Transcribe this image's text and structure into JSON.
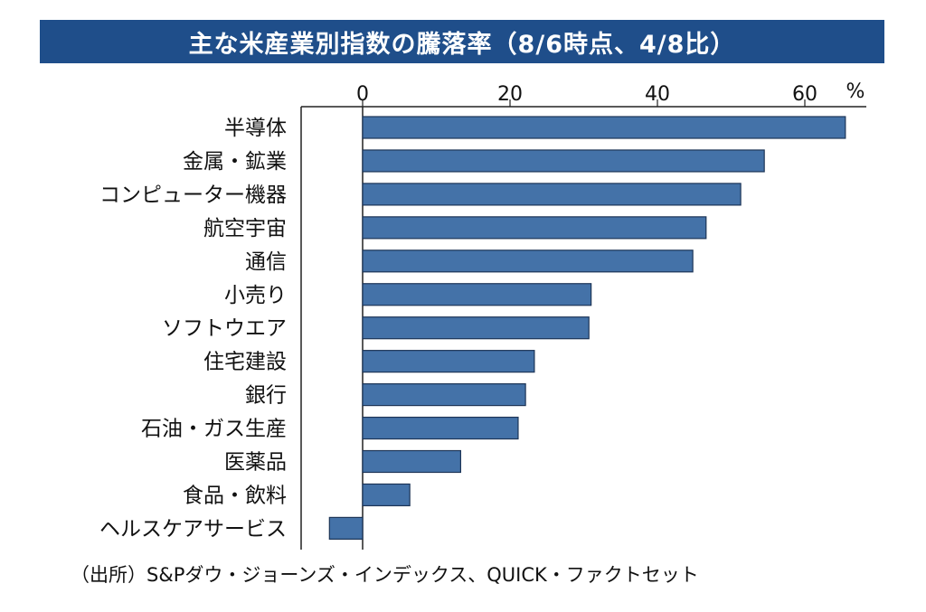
{
  "title": "主な米産業別指数の騰落率（8/6時点、4/8比）",
  "source": "（出所）S&Pダウ・ジョーンズ・インデックス、QUICK・ファクトセット",
  "colors": {
    "bar_fill": "#4472a8",
    "bar_stroke": "#1d3557",
    "title_bg": "#1f4e8a"
  },
  "chart_data": {
    "type": "bar",
    "orientation": "horizontal",
    "categories": [
      "半導体",
      "金属・鉱業",
      "コンピューター機器",
      "航空宇宙",
      "通信",
      "小売り",
      "ソフトウエア",
      "住宅建設",
      "銀行",
      "石油・ガス生産",
      "医薬品",
      "食品・飲料",
      "ヘルスケアサービス"
    ],
    "values": [
      65.5,
      54.5,
      51.3,
      46.6,
      44.8,
      31.0,
      30.7,
      23.3,
      22.1,
      21.1,
      13.3,
      6.4,
      -4.5
    ],
    "unit": "%",
    "xticks": [
      0,
      20,
      40,
      60
    ],
    "xlim": [
      -8.5,
      68
    ],
    "grid": false
  }
}
